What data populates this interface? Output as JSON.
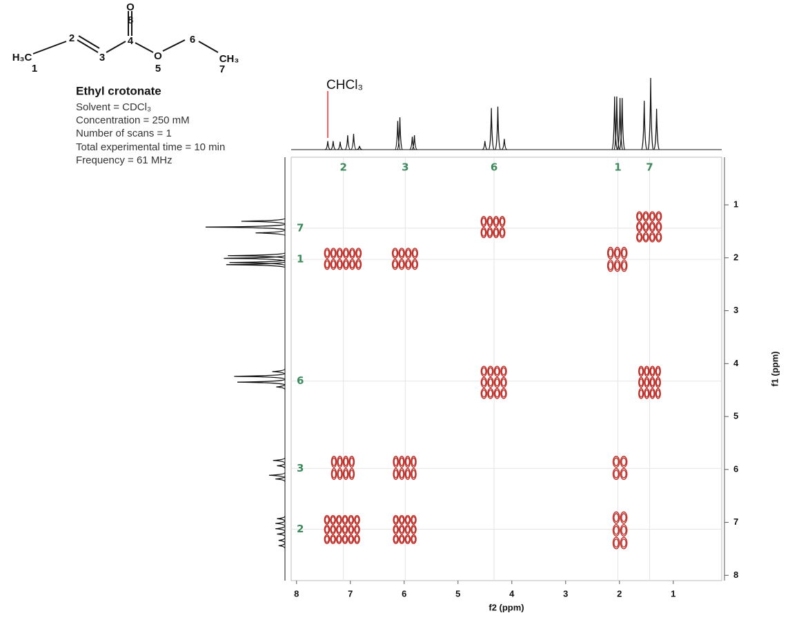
{
  "compound": {
    "atoms": [
      "H₃C",
      "1",
      "2",
      "3",
      "4",
      "O",
      "8",
      "O",
      "5",
      "6",
      "CH₃",
      "7"
    ],
    "name": "Ethyl crotonate",
    "details": [
      "Solvent = CDCl₃",
      "Concentration = 250 mM",
      "Number of scans = 1",
      "Total experimental time = 10 min",
      "Frequency = 61 MHz"
    ]
  },
  "chart_data": {
    "type": "cosy",
    "x_label": "f2 (ppm)",
    "y_label": "f1 (ppm)",
    "xlim": [
      8.1,
      0.1
    ],
    "ylim": [
      0.1,
      8.1
    ],
    "xticks": [
      8,
      7,
      6,
      5,
      4,
      3,
      2,
      1
    ],
    "yticks": [
      1,
      2,
      3,
      4,
      5,
      6,
      7,
      8
    ],
    "contour_color": "#c0302a",
    "label_color": "#3d8a5c",
    "projection_color": "#111111",
    "solvent": {
      "label": "CHCl₃",
      "ppm": 7.42,
      "color": "#e53030"
    },
    "assignments": {
      "labels": [
        "2",
        "3",
        "6",
        "1",
        "7"
      ],
      "ppm": [
        7.13,
        5.98,
        4.33,
        2.03,
        1.44
      ]
    },
    "top_projection": {
      "ppm": [
        7.42,
        7.32,
        7.19,
        7.05,
        6.94,
        6.83,
        6.12,
        6.08,
        5.85,
        5.81,
        4.5,
        4.38,
        4.26,
        4.14,
        2.09,
        2.05,
        1.99,
        1.95,
        1.54,
        1.42,
        1.31
      ],
      "heights": [
        12,
        12,
        11,
        20,
        22,
        5,
        40,
        45,
        18,
        20,
        12,
        58,
        60,
        15,
        74,
        74,
        72,
        72,
        68,
        100,
        57
      ]
    },
    "left_projection": {
      "ppm": [
        1.31,
        1.42,
        1.53,
        1.96,
        2.01,
        2.09,
        2.13,
        4.15,
        4.24,
        4.35,
        4.44,
        5.83,
        5.93,
        6.11,
        6.18,
        6.93,
        7.02,
        7.12,
        7.22,
        7.34,
        7.44
      ],
      "heights": [
        55,
        100,
        37,
        72,
        77,
        70,
        74,
        16,
        64,
        60,
        11,
        15,
        10,
        20,
        12,
        10,
        12,
        12,
        10,
        8,
        8
      ]
    },
    "cross_peaks": {
      "f2_from": [
        4.58,
        1.69,
        7.49,
        6.23,
        2.23,
        4.58,
        1.65,
        7.36,
        6.21,
        2.13,
        7.49,
        6.21,
        2.13
      ],
      "f2_to": [
        4.12,
        1.21,
        6.79,
        5.74,
        1.85,
        4.09,
        1.23,
        6.92,
        5.77,
        1.85,
        6.82,
        5.77,
        1.85
      ],
      "f1_from": [
        1.21,
        1.12,
        1.81,
        1.81,
        1.79,
        4.04,
        4.04,
        5.74,
        5.74,
        5.74,
        6.86,
        6.86,
        6.79
      ],
      "f1_to": [
        1.63,
        1.71,
        2.23,
        2.23,
        2.27,
        4.67,
        4.67,
        6.2,
        6.2,
        6.2,
        7.41,
        7.41,
        7.51
      ]
    }
  }
}
